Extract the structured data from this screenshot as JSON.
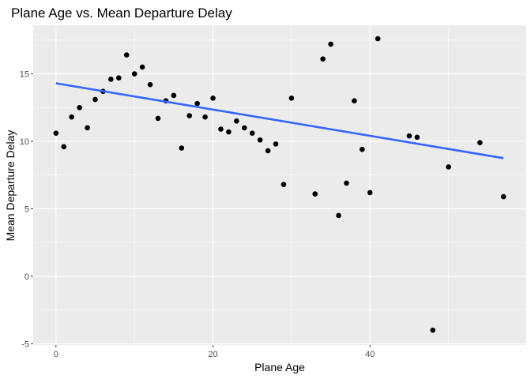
{
  "chart_data": {
    "type": "scatter",
    "title": "Plane Age vs. Mean Departure Delay",
    "xlabel": "Plane Age",
    "ylabel": "Mean Departure Delay",
    "xlim": [
      -2.9,
      59.9
    ],
    "ylim": [
      -5.1,
      18.6
    ],
    "x_ticks": [
      0,
      20,
      40
    ],
    "y_ticks": [
      -5,
      0,
      5,
      10,
      15
    ],
    "grid": true,
    "colors": {
      "panel": "#ebebeb",
      "grid": "#ffffff",
      "point": "#000000",
      "trend": "#3366ff"
    },
    "points": [
      {
        "x": 0,
        "y": 10.6
      },
      {
        "x": 1,
        "y": 9.6
      },
      {
        "x": 2,
        "y": 11.8
      },
      {
        "x": 3,
        "y": 12.5
      },
      {
        "x": 4,
        "y": 11.0
      },
      {
        "x": 5,
        "y": 13.1
      },
      {
        "x": 6,
        "y": 13.7
      },
      {
        "x": 7,
        "y": 14.6
      },
      {
        "x": 8,
        "y": 14.7
      },
      {
        "x": 9,
        "y": 16.4
      },
      {
        "x": 10,
        "y": 15.0
      },
      {
        "x": 11,
        "y": 15.5
      },
      {
        "x": 12,
        "y": 14.2
      },
      {
        "x": 13,
        "y": 11.7
      },
      {
        "x": 14,
        "y": 13.0
      },
      {
        "x": 15,
        "y": 13.4
      },
      {
        "x": 16,
        "y": 9.5
      },
      {
        "x": 17,
        "y": 11.9
      },
      {
        "x": 18,
        "y": 12.8
      },
      {
        "x": 19,
        "y": 11.8
      },
      {
        "x": 20,
        "y": 13.2
      },
      {
        "x": 21,
        "y": 10.9
      },
      {
        "x": 22,
        "y": 10.7
      },
      {
        "x": 23,
        "y": 11.5
      },
      {
        "x": 24,
        "y": 11.0
      },
      {
        "x": 25,
        "y": 10.6
      },
      {
        "x": 26,
        "y": 10.1
      },
      {
        "x": 27,
        "y": 9.3
      },
      {
        "x": 28,
        "y": 9.8
      },
      {
        "x": 29,
        "y": 6.8
      },
      {
        "x": 30,
        "y": 13.2
      },
      {
        "x": 33,
        "y": 6.1
      },
      {
        "x": 34,
        "y": 16.1
      },
      {
        "x": 35,
        "y": 17.2
      },
      {
        "x": 36,
        "y": 4.5
      },
      {
        "x": 37,
        "y": 6.9
      },
      {
        "x": 38,
        "y": 13.0
      },
      {
        "x": 39,
        "y": 9.4
      },
      {
        "x": 40,
        "y": 6.2
      },
      {
        "x": 41,
        "y": 17.6
      },
      {
        "x": 45,
        "y": 10.4
      },
      {
        "x": 46,
        "y": 10.3
      },
      {
        "x": 48,
        "y": -4.0
      },
      {
        "x": 50,
        "y": 8.1
      },
      {
        "x": 54,
        "y": 9.9
      },
      {
        "x": 57,
        "y": 5.9
      }
    ],
    "trend_line": {
      "x": [
        0,
        57
      ],
      "y": [
        14.3,
        8.75
      ]
    }
  }
}
